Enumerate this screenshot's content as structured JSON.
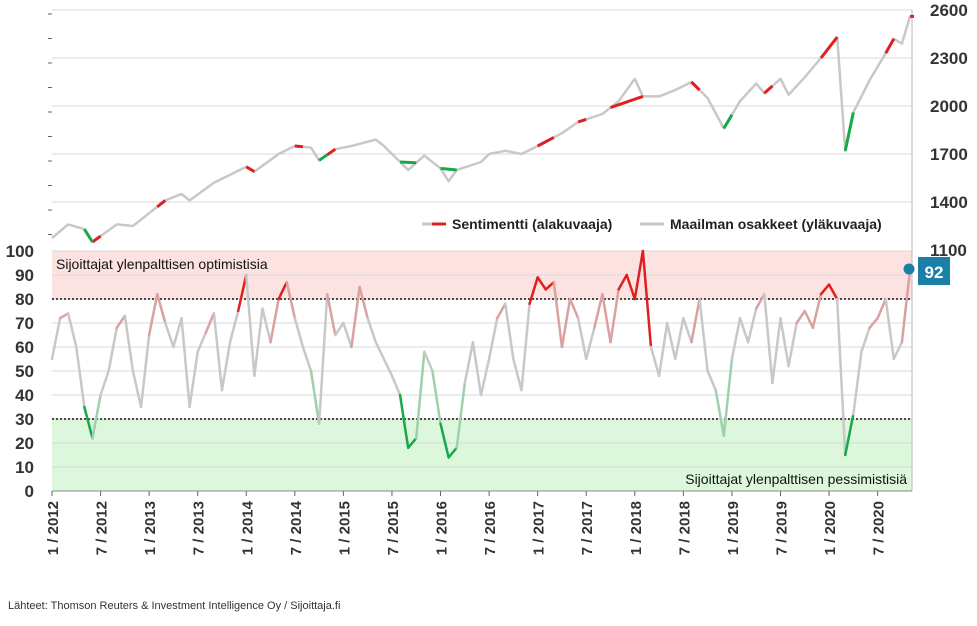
{
  "chart_data": [
    {
      "type": "line",
      "panel": "upper",
      "axis_side": "right",
      "ylim": [
        1100,
        2600
      ],
      "yticks": [
        "1100",
        "1400",
        "1700",
        "2000",
        "2300",
        "2600"
      ],
      "grid": true,
      "x_range": [
        "2012-01",
        "2020-10"
      ],
      "legend_position": "bottom-right",
      "legend": [
        "Sentimentti (alakuvaaja)",
        "Maailman osakkeet (yläkuvaaja)"
      ],
      "colors": {
        "series": "#c8c8c8",
        "optimism": "#e02020",
        "pessimism": "#18a84a"
      },
      "series": [
        {
          "name": "Maailman osakkeet (yläkuvaaja)",
          "points": [
            [
              "2012-01",
              1175
            ],
            [
              "2012-03",
              1260
            ],
            [
              "2012-05",
              1230
            ],
            [
              "2012-06",
              1150
            ],
            [
              "2012-09",
              1260
            ],
            [
              "2012-11",
              1250
            ],
            [
              "2013-01",
              1330
            ],
            [
              "2013-03",
              1410
            ],
            [
              "2013-05",
              1450
            ],
            [
              "2013-06",
              1410
            ],
            [
              "2013-09",
              1520
            ],
            [
              "2013-11",
              1570
            ],
            [
              "2014-01",
              1620
            ],
            [
              "2014-02",
              1590
            ],
            [
              "2014-05",
              1700
            ],
            [
              "2014-07",
              1750
            ],
            [
              "2014-09",
              1740
            ],
            [
              "2014-10",
              1660
            ],
            [
              "2014-12",
              1730
            ],
            [
              "2015-02",
              1750
            ],
            [
              "2015-05",
              1790
            ],
            [
              "2015-06",
              1750
            ],
            [
              "2015-07",
              1700
            ],
            [
              "2015-09",
              1600
            ],
            [
              "2015-11",
              1690
            ],
            [
              "2016-01",
              1610
            ],
            [
              "2016-02",
              1530
            ],
            [
              "2016-03",
              1600
            ],
            [
              "2016-06",
              1650
            ],
            [
              "2016-07",
              1700
            ],
            [
              "2016-09",
              1720
            ],
            [
              "2016-11",
              1700
            ],
            [
              "2017-01",
              1750
            ],
            [
              "2017-04",
              1830
            ],
            [
              "2017-06",
              1900
            ],
            [
              "2017-09",
              1950
            ],
            [
              "2017-11",
              2030
            ],
            [
              "2018-01",
              2170
            ],
            [
              "2018-02",
              2060
            ],
            [
              "2018-04",
              2060
            ],
            [
              "2018-06",
              2100
            ],
            [
              "2018-08",
              2150
            ],
            [
              "2018-10",
              2050
            ],
            [
              "2018-12",
              1860
            ],
            [
              "2019-02",
              2030
            ],
            [
              "2019-04",
              2140
            ],
            [
              "2019-05",
              2080
            ],
            [
              "2019-07",
              2170
            ],
            [
              "2019-08",
              2070
            ],
            [
              "2019-10",
              2180
            ],
            [
              "2019-12",
              2300
            ],
            [
              "2020-02",
              2430
            ],
            [
              "2020-03",
              1720
            ],
            [
              "2020-04",
              1960
            ],
            [
              "2020-06",
              2160
            ],
            [
              "2020-08",
              2330
            ],
            [
              "2020-09",
              2420
            ],
            [
              "2020-10",
              2390
            ],
            [
              "2020-11",
              2560
            ]
          ]
        }
      ],
      "highlights_optimism": [
        [
          "2012-06",
          "2012-07"
        ],
        [
          "2013-02",
          "2013-03"
        ],
        [
          "2014-01",
          "2014-02"
        ],
        [
          "2014-07",
          "2014-08"
        ],
        [
          "2014-11",
          "2014-12"
        ],
        [
          "2017-01",
          "2017-03"
        ],
        [
          "2017-06",
          "2017-07"
        ],
        [
          "2017-10",
          "2018-02"
        ],
        [
          "2018-08",
          "2018-09"
        ],
        [
          "2019-05",
          "2019-06"
        ],
        [
          "2019-12",
          "2020-02"
        ],
        [
          "2020-08",
          "2020-09"
        ],
        [
          "2020-11",
          "2020-11"
        ]
      ],
      "highlights_pessimism": [
        [
          "2012-05",
          "2012-06"
        ],
        [
          "2014-10",
          "2014-11"
        ],
        [
          "2015-08",
          "2015-10"
        ],
        [
          "2016-01",
          "2016-03"
        ],
        [
          "2018-12",
          "2019-01"
        ],
        [
          "2020-03",
          "2020-04"
        ]
      ]
    },
    {
      "type": "line",
      "panel": "lower",
      "axis_side": "left",
      "ylim": [
        0,
        100
      ],
      "yticks": [
        "0",
        "10",
        "20",
        "30",
        "40",
        "50",
        "60",
        "70",
        "80",
        "90",
        "100"
      ],
      "grid": true,
      "xticks": [
        "1 / 2012",
        "7 / 2012",
        "1 / 2013",
        "7 / 2013",
        "1 / 2014",
        "7 / 2014",
        "1 / 2015",
        "7 / 2015",
        "1 / 2016",
        "7 / 2016",
        "1 / 2017",
        "7 / 2017",
        "1 / 2018",
        "7 / 2018",
        "1 / 2019",
        "7 / 2019",
        "1 / 2020",
        "7 / 2020"
      ],
      "thresholds": [
        80,
        30
      ],
      "zone_colors": {
        "optimism": "#fde2e2",
        "pessimism": "#dcf7dc"
      },
      "annotations": {
        "optimism_zone": "Sijoittajat ylenpalttisen optimistisia",
        "pessimism_zone": "Sijoittajat ylenpalttisen pessimistisiä",
        "last_value": "92"
      },
      "colors": {
        "high": "#e02020",
        "neutral": "#c8c8c8",
        "low": "#18a84a",
        "badge": "#1b7fa8"
      },
      "series": [
        {
          "name": "Sentimentti",
          "points": [
            [
              "2012-01",
              55
            ],
            [
              "2012-02",
              72
            ],
            [
              "2012-03",
              74
            ],
            [
              "2012-04",
              60
            ],
            [
              "2012-05",
              35
            ],
            [
              "2012-06",
              22
            ],
            [
              "2012-07",
              40
            ],
            [
              "2012-08",
              50
            ],
            [
              "2012-09",
              68
            ],
            [
              "2012-10",
              73
            ],
            [
              "2012-11",
              50
            ],
            [
              "2012-12",
              35
            ],
            [
              "2013-01",
              65
            ],
            [
              "2013-02",
              82
            ],
            [
              "2013-03",
              70
            ],
            [
              "2013-04",
              60
            ],
            [
              "2013-05",
              72
            ],
            [
              "2013-06",
              35
            ],
            [
              "2013-07",
              58
            ],
            [
              "2013-08",
              66
            ],
            [
              "2013-09",
              74
            ],
            [
              "2013-10",
              42
            ],
            [
              "2013-11",
              62
            ],
            [
              "2013-12",
              75
            ],
            [
              "2014-01",
              90
            ],
            [
              "2014-02",
              48
            ],
            [
              "2014-03",
              76
            ],
            [
              "2014-04",
              62
            ],
            [
              "2014-05",
              80
            ],
            [
              "2014-06",
              87
            ],
            [
              "2014-07",
              72
            ],
            [
              "2014-08",
              60
            ],
            [
              "2014-09",
              50
            ],
            [
              "2014-10",
              28
            ],
            [
              "2014-11",
              82
            ],
            [
              "2014-12",
              65
            ],
            [
              "2015-01",
              70
            ],
            [
              "2015-02",
              60
            ],
            [
              "2015-03",
              85
            ],
            [
              "2015-04",
              72
            ],
            [
              "2015-05",
              62
            ],
            [
              "2015-06",
              55
            ],
            [
              "2015-07",
              48
            ],
            [
              "2015-08",
              40
            ],
            [
              "2015-09",
              18
            ],
            [
              "2015-10",
              22
            ],
            [
              "2015-11",
              58
            ],
            [
              "2015-12",
              50
            ],
            [
              "2016-01",
              28
            ],
            [
              "2016-02",
              14
            ],
            [
              "2016-03",
              18
            ],
            [
              "2016-04",
              45
            ],
            [
              "2016-05",
              62
            ],
            [
              "2016-06",
              40
            ],
            [
              "2016-07",
              55
            ],
            [
              "2016-08",
              72
            ],
            [
              "2016-09",
              78
            ],
            [
              "2016-10",
              55
            ],
            [
              "2016-11",
              42
            ],
            [
              "2016-12",
              78
            ],
            [
              "2017-01",
              89
            ],
            [
              "2017-02",
              84
            ],
            [
              "2017-03",
              87
            ],
            [
              "2017-04",
              60
            ],
            [
              "2017-05",
              80
            ],
            [
              "2017-06",
              72
            ],
            [
              "2017-07",
              55
            ],
            [
              "2017-08",
              68
            ],
            [
              "2017-09",
              82
            ],
            [
              "2017-10",
              62
            ],
            [
              "2017-11",
              84
            ],
            [
              "2017-12",
              90
            ],
            [
              "2018-01",
              80
            ],
            [
              "2018-02",
              100
            ],
            [
              "2018-03",
              60
            ],
            [
              "2018-04",
              48
            ],
            [
              "2018-05",
              70
            ],
            [
              "2018-06",
              55
            ],
            [
              "2018-07",
              72
            ],
            [
              "2018-08",
              62
            ],
            [
              "2018-09",
              80
            ],
            [
              "2018-10",
              50
            ],
            [
              "2018-11",
              42
            ],
            [
              "2018-12",
              23
            ],
            [
              "2019-01",
              55
            ],
            [
              "2019-02",
              72
            ],
            [
              "2019-03",
              62
            ],
            [
              "2019-04",
              76
            ],
            [
              "2019-05",
              82
            ],
            [
              "2019-06",
              45
            ],
            [
              "2019-07",
              72
            ],
            [
              "2019-08",
              52
            ],
            [
              "2019-09",
              70
            ],
            [
              "2019-10",
              75
            ],
            [
              "2019-11",
              68
            ],
            [
              "2019-12",
              82
            ],
            [
              "2020-01",
              86
            ],
            [
              "2020-02",
              80
            ],
            [
              "2020-03",
              15
            ],
            [
              "2020-04",
              32
            ],
            [
              "2020-05",
              58
            ],
            [
              "2020-06",
              68
            ],
            [
              "2020-07",
              72
            ],
            [
              "2020-08",
              80
            ],
            [
              "2020-09",
              55
            ],
            [
              "2020-10",
              62
            ],
            [
              "2020-11",
              92
            ]
          ]
        }
      ]
    }
  ],
  "source": "Lähteet: Thomson Reuters & Investment Intelligence Oy / Sijoittaja.fi"
}
